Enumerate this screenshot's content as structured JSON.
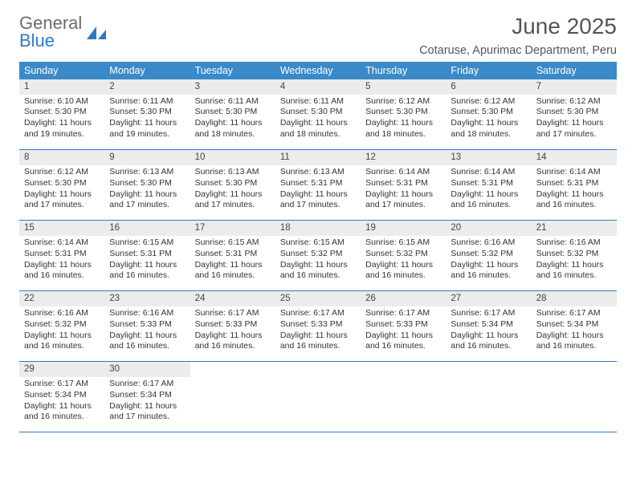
{
  "logo": {
    "text_general": "General",
    "text_blue": "Blue"
  },
  "header": {
    "month_title": "June 2025",
    "location": "Cotaruse, Apurimac Department, Peru"
  },
  "colors": {
    "header_bg": "#3a89c9",
    "divider": "#2d7ac0",
    "daynum_bg": "#ececec",
    "text": "#333333",
    "logo_gray": "#6b6b6b",
    "logo_blue": "#2d7ac0"
  },
  "typography": {
    "title_fontsize_pt": 21,
    "location_fontsize_pt": 11,
    "weekday_fontsize_pt": 9,
    "body_fontsize_pt": 8
  },
  "calendar": {
    "type": "table",
    "columns": [
      "Sunday",
      "Monday",
      "Tuesday",
      "Wednesday",
      "Thursday",
      "Friday",
      "Saturday"
    ],
    "weeks": [
      [
        {
          "day": 1,
          "sunrise": "6:10 AM",
          "sunset": "5:30 PM",
          "daylight": "11 hours and 19 minutes."
        },
        {
          "day": 2,
          "sunrise": "6:11 AM",
          "sunset": "5:30 PM",
          "daylight": "11 hours and 19 minutes."
        },
        {
          "day": 3,
          "sunrise": "6:11 AM",
          "sunset": "5:30 PM",
          "daylight": "11 hours and 18 minutes."
        },
        {
          "day": 4,
          "sunrise": "6:11 AM",
          "sunset": "5:30 PM",
          "daylight": "11 hours and 18 minutes."
        },
        {
          "day": 5,
          "sunrise": "6:12 AM",
          "sunset": "5:30 PM",
          "daylight": "11 hours and 18 minutes."
        },
        {
          "day": 6,
          "sunrise": "6:12 AM",
          "sunset": "5:30 PM",
          "daylight": "11 hours and 18 minutes."
        },
        {
          "day": 7,
          "sunrise": "6:12 AM",
          "sunset": "5:30 PM",
          "daylight": "11 hours and 17 minutes."
        }
      ],
      [
        {
          "day": 8,
          "sunrise": "6:12 AM",
          "sunset": "5:30 PM",
          "daylight": "11 hours and 17 minutes."
        },
        {
          "day": 9,
          "sunrise": "6:13 AM",
          "sunset": "5:30 PM",
          "daylight": "11 hours and 17 minutes."
        },
        {
          "day": 10,
          "sunrise": "6:13 AM",
          "sunset": "5:30 PM",
          "daylight": "11 hours and 17 minutes."
        },
        {
          "day": 11,
          "sunrise": "6:13 AM",
          "sunset": "5:31 PM",
          "daylight": "11 hours and 17 minutes."
        },
        {
          "day": 12,
          "sunrise": "6:14 AM",
          "sunset": "5:31 PM",
          "daylight": "11 hours and 17 minutes."
        },
        {
          "day": 13,
          "sunrise": "6:14 AM",
          "sunset": "5:31 PM",
          "daylight": "11 hours and 16 minutes."
        },
        {
          "day": 14,
          "sunrise": "6:14 AM",
          "sunset": "5:31 PM",
          "daylight": "11 hours and 16 minutes."
        }
      ],
      [
        {
          "day": 15,
          "sunrise": "6:14 AM",
          "sunset": "5:31 PM",
          "daylight": "11 hours and 16 minutes."
        },
        {
          "day": 16,
          "sunrise": "6:15 AM",
          "sunset": "5:31 PM",
          "daylight": "11 hours and 16 minutes."
        },
        {
          "day": 17,
          "sunrise": "6:15 AM",
          "sunset": "5:31 PM",
          "daylight": "11 hours and 16 minutes."
        },
        {
          "day": 18,
          "sunrise": "6:15 AM",
          "sunset": "5:32 PM",
          "daylight": "11 hours and 16 minutes."
        },
        {
          "day": 19,
          "sunrise": "6:15 AM",
          "sunset": "5:32 PM",
          "daylight": "11 hours and 16 minutes."
        },
        {
          "day": 20,
          "sunrise": "6:16 AM",
          "sunset": "5:32 PM",
          "daylight": "11 hours and 16 minutes."
        },
        {
          "day": 21,
          "sunrise": "6:16 AM",
          "sunset": "5:32 PM",
          "daylight": "11 hours and 16 minutes."
        }
      ],
      [
        {
          "day": 22,
          "sunrise": "6:16 AM",
          "sunset": "5:32 PM",
          "daylight": "11 hours and 16 minutes."
        },
        {
          "day": 23,
          "sunrise": "6:16 AM",
          "sunset": "5:33 PM",
          "daylight": "11 hours and 16 minutes."
        },
        {
          "day": 24,
          "sunrise": "6:17 AM",
          "sunset": "5:33 PM",
          "daylight": "11 hours and 16 minutes."
        },
        {
          "day": 25,
          "sunrise": "6:17 AM",
          "sunset": "5:33 PM",
          "daylight": "11 hours and 16 minutes."
        },
        {
          "day": 26,
          "sunrise": "6:17 AM",
          "sunset": "5:33 PM",
          "daylight": "11 hours and 16 minutes."
        },
        {
          "day": 27,
          "sunrise": "6:17 AM",
          "sunset": "5:34 PM",
          "daylight": "11 hours and 16 minutes."
        },
        {
          "day": 28,
          "sunrise": "6:17 AM",
          "sunset": "5:34 PM",
          "daylight": "11 hours and 16 minutes."
        }
      ],
      [
        {
          "day": 29,
          "sunrise": "6:17 AM",
          "sunset": "5:34 PM",
          "daylight": "11 hours and 16 minutes."
        },
        {
          "day": 30,
          "sunrise": "6:17 AM",
          "sunset": "5:34 PM",
          "daylight": "11 hours and 17 minutes."
        },
        null,
        null,
        null,
        null,
        null
      ]
    ],
    "labels": {
      "sunrise": "Sunrise:",
      "sunset": "Sunset:",
      "daylight": "Daylight:"
    }
  }
}
